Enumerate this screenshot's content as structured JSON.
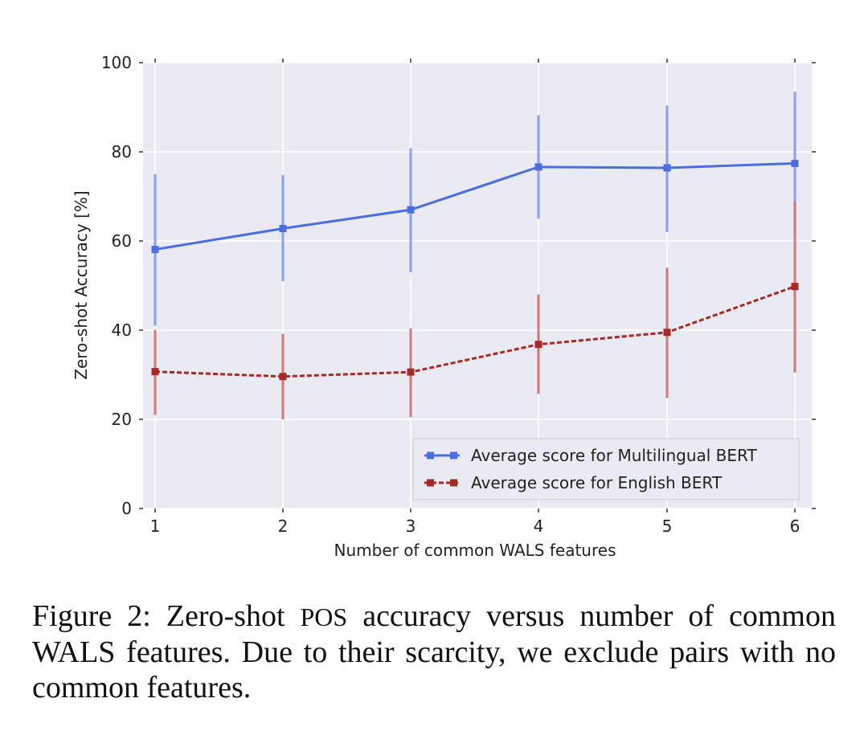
{
  "chart_data": {
    "type": "line",
    "title": "",
    "xlabel": "Number of common WALS features",
    "ylabel": "Zero-shot Accuracy [%]",
    "x": [
      1,
      2,
      3,
      4,
      5,
      6
    ],
    "x_tick_labels": [
      "1",
      "2",
      "3",
      "4",
      "5",
      "6"
    ],
    "ylim": [
      0,
      100
    ],
    "y_ticks": [
      0,
      20,
      40,
      60,
      80,
      100
    ],
    "y_tick_labels": [
      "0",
      "20",
      "40",
      "60",
      "80",
      "100"
    ],
    "grid": true,
    "legend_position": "lower-right",
    "series": [
      {
        "name": "Average score for Multilingual BERT",
        "color": "#4a6de0",
        "error_color": "#7d97ea",
        "line_style": "solid",
        "values": [
          58.1,
          62.8,
          67.0,
          76.6,
          76.4,
          77.4
        ],
        "err_low": [
          41.0,
          51.0,
          53.0,
          65.0,
          62.0,
          61.5
        ],
        "err_high": [
          75.0,
          74.8,
          80.8,
          88.2,
          90.4,
          93.5
        ]
      },
      {
        "name": "Average score for English BERT",
        "color": "#a52a2a",
        "error_color": "#cc6d6a",
        "line_style": "dashed",
        "values": [
          30.7,
          29.6,
          30.6,
          36.8,
          39.5,
          49.8
        ],
        "err_low": [
          21.0,
          20.0,
          20.5,
          25.7,
          24.8,
          30.5
        ],
        "err_high": [
          40.1,
          39.2,
          40.4,
          48.0,
          54.0,
          68.8
        ]
      }
    ]
  },
  "caption": {
    "prefix": "Figure 2:  Zero-shot ",
    "abbr": "POS",
    "suffix": " accuracy versus number of common WALS features. Due to their scarcity, we exclude pairs with no common features."
  }
}
